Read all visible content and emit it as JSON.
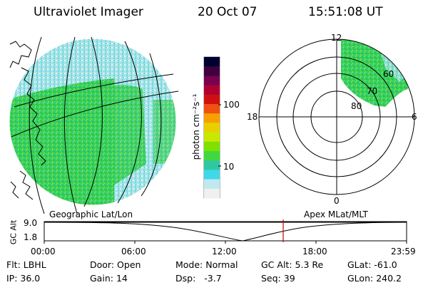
{
  "header": {
    "title": "Ultraviolet Imager",
    "date": "20 Oct 07",
    "time": "15:51:08 UT"
  },
  "colorbar": {
    "unit_label": "photon cm⁻²s⁻¹",
    "scale": "log",
    "ticks": [
      "100",
      "10"
    ],
    "colors_top_to_bottom": [
      "#000030",
      "#400040",
      "#7a0050",
      "#b00030",
      "#d01010",
      "#f05010",
      "#f8a000",
      "#e8d000",
      "#c8e800",
      "#80e000",
      "#40d840",
      "#30c8a0",
      "#40d8e8",
      "#c0e8f0",
      "#f0f0f0"
    ]
  },
  "globe_panel": {
    "caption": "Geographic Lat/Lon"
  },
  "polar_plot": {
    "caption": "Apex MLat/MLT",
    "mlt_labels": {
      "top": "12",
      "left": "18",
      "right": "6",
      "bottom": "0"
    },
    "mlat_labels": [
      "60",
      "70",
      "80"
    ]
  },
  "altitude_plot": {
    "ylabel": "GC Alt",
    "ytick_top": "9.0",
    "ytick_bottom": "1.8",
    "xticks": [
      "00:00",
      "06:00",
      "12:00",
      "18:00",
      "23:59"
    ],
    "marker_color": "#cc0000"
  },
  "status": {
    "flt_label": "Flt:",
    "flt_value": "LBHL",
    "ip_label": "IP:",
    "ip_value": "36.0",
    "door_label": "Door:",
    "door_value": "Open",
    "gain_label": "Gain:",
    "gain_value": "14",
    "mode_label": "Mode:",
    "mode_value": "Normal",
    "dsp_label": "Dsp:",
    "dsp_value": "-3.7",
    "gcalt_label": "GC Alt:",
    "gcalt_value": "5.3 Re",
    "seq_label": "Seq:",
    "seq_value": "39",
    "glat_label": "GLat:",
    "glat_value": "-61.0",
    "glon_label": "GLon:",
    "glon_value": "240.2"
  }
}
